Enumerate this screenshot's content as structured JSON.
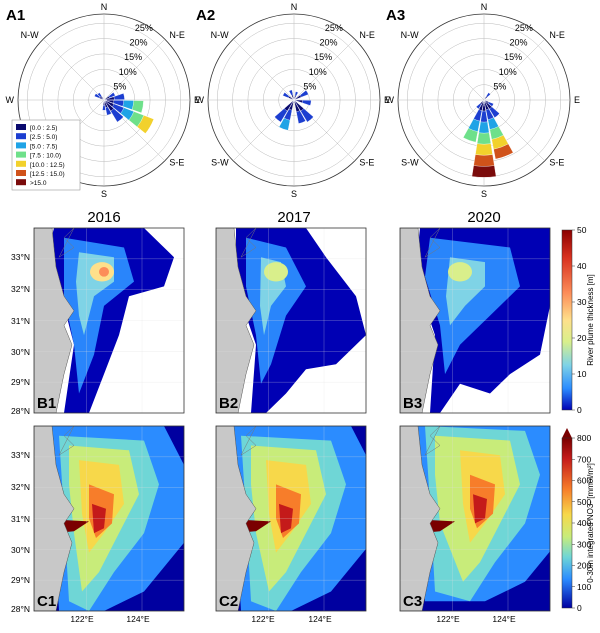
{
  "wind_roses": [
    {
      "label": "A1",
      "compass": [
        "N",
        "N-E",
        "E",
        "S-E",
        "S",
        "S-W",
        "W",
        "N-W"
      ],
      "radial_ticks": [
        "5%",
        "10%",
        "15%",
        "20%",
        "25%"
      ],
      "sectors": [
        {
          "dir": 100,
          "len": 0.46
        },
        {
          "dir": 120,
          "len": 0.62
        },
        {
          "dir": 80,
          "len": 0.24
        },
        {
          "dir": 140,
          "len": 0.3
        },
        {
          "dir": 60,
          "len": 0.14
        },
        {
          "dir": 300,
          "len": 0.12
        },
        {
          "dir": 160,
          "len": 0.18
        },
        {
          "dir": 180,
          "len": 0.12
        },
        {
          "dir": 320,
          "len": 0.1
        }
      ]
    },
    {
      "label": "A2",
      "compass": [
        "N",
        "N-E",
        "E",
        "S-E",
        "S",
        "S-W",
        "W",
        "N-W"
      ],
      "radial_ticks": [
        "5%",
        "10%",
        "15%",
        "20%",
        "25%"
      ],
      "sectors": [
        {
          "dir": 200,
          "len": 0.36
        },
        {
          "dir": 140,
          "len": 0.3
        },
        {
          "dir": 220,
          "len": 0.3
        },
        {
          "dir": 160,
          "len": 0.28
        },
        {
          "dir": 60,
          "len": 0.18
        },
        {
          "dir": 100,
          "len": 0.2
        },
        {
          "dir": 300,
          "len": 0.14
        },
        {
          "dir": 340,
          "len": 0.12
        },
        {
          "dir": 20,
          "len": 0.1
        }
      ]
    },
    {
      "label": "A3",
      "compass": [
        "N",
        "N-E",
        "E",
        "S-E",
        "S",
        "S-W",
        "W",
        "N-W"
      ],
      "radial_ticks": [
        "5%",
        "10%",
        "15%",
        "20%",
        "25%"
      ],
      "sectors": [
        {
          "dir": 180,
          "len": 0.9
        },
        {
          "dir": 160,
          "len": 0.7
        },
        {
          "dir": 200,
          "len": 0.5
        },
        {
          "dir": 140,
          "len": 0.24
        },
        {
          "dir": 120,
          "len": 0.12
        },
        {
          "dir": 220,
          "len": 0.12
        },
        {
          "dir": 40,
          "len": 0.1
        }
      ]
    }
  ],
  "wind_legend": [
    {
      "label": "[0.0 : 2.5)",
      "color": "#0a0a6e"
    },
    {
      "label": "[2.5 : 5.0)",
      "color": "#1c3ed0"
    },
    {
      "label": "[5.0 : 7.5)",
      "color": "#1fa3e6"
    },
    {
      "label": "[7.5 : 10.0)",
      "color": "#6ee08a"
    },
    {
      "label": "[10.0 : 12.5)",
      "color": "#f2d12c"
    },
    {
      "label": "[12.5 : 15.0)",
      "color": "#d0521a"
    },
    {
      "label": ">15.0",
      "color": "#7a0b0b"
    }
  ],
  "years": [
    "2016",
    "2017",
    "2020"
  ],
  "row_b": {
    "labels": [
      "B1",
      "B2",
      "B3"
    ],
    "lat_ticks": [
      "33°N",
      "32°N",
      "31°N",
      "30°N",
      "29°N",
      "28°N"
    ],
    "colorbar": {
      "title": "River plume thickness [m]",
      "ticks": [
        "50",
        "40",
        "30",
        "20",
        "10",
        "0"
      ],
      "colors": [
        "#8b0000",
        "#d7301f",
        "#fc8d59",
        "#fee08b",
        "#d9ef8b",
        "#7fd3e6",
        "#2b8cff",
        "#0000b4"
      ]
    }
  },
  "row_c": {
    "labels": [
      "C1",
      "C2",
      "C3"
    ],
    "lat_ticks": [
      "33°N",
      "32°N",
      "31°N",
      "30°N",
      "29°N",
      "28°N"
    ],
    "lon_ticks": [
      "122°E",
      "124°E"
    ],
    "colorbar": {
      "title": "0-30m integrated NO3- [mmol/m²]",
      "ticks": [
        "800",
        "700",
        "600",
        "500",
        "400",
        "300",
        "200",
        "100",
        "0"
      ],
      "colors": [
        "#8b0000",
        "#d7301f",
        "#fc8d59",
        "#fee08b",
        "#d9ef8b",
        "#7fd3e6",
        "#2b8cff",
        "#0000b4"
      ]
    }
  }
}
